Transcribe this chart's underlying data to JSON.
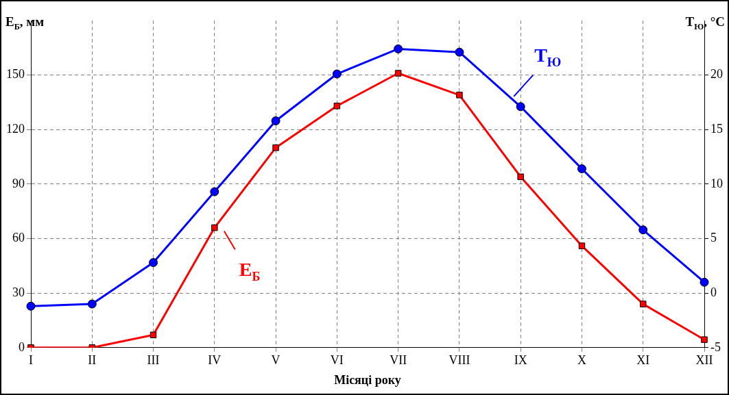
{
  "chart_data": {
    "type": "line",
    "xlabel": "Місяці року",
    "ylabel": "E$_{Б}$, мм",
    "y2label": "T$_{Ю}$, °C",
    "categories": [
      "I",
      "II",
      "III",
      "IV",
      "V",
      "VI",
      "VII",
      "VIII",
      "IX",
      "X",
      "XI",
      "XII"
    ],
    "series": [
      {
        "name": "E$_{Б}$",
        "color": "#ff0000",
        "marker": "square",
        "values": [
          0,
          0,
          7,
          66,
          110,
          133,
          151,
          139,
          94,
          56,
          24,
          4.4
        ]
      },
      {
        "name": "T$_{Ю}$",
        "color": "#0000ff",
        "marker": "circle",
        "axis": "y2",
        "values": [
          -1.2,
          -1.0,
          2.8,
          9.3,
          15.8,
          20.1,
          22.4,
          22.1,
          17.1,
          11.4,
          5.8,
          1.0
        ]
      }
    ],
    "ylim": [
      0,
      180
    ],
    "yticks": [
      0,
      30,
      60,
      90,
      120,
      150
    ],
    "y2lim": [
      -5,
      25
    ],
    "y2ticks": [
      -5,
      0,
      5,
      10,
      15,
      20
    ],
    "grid": true,
    "line_style": "solid"
  }
}
